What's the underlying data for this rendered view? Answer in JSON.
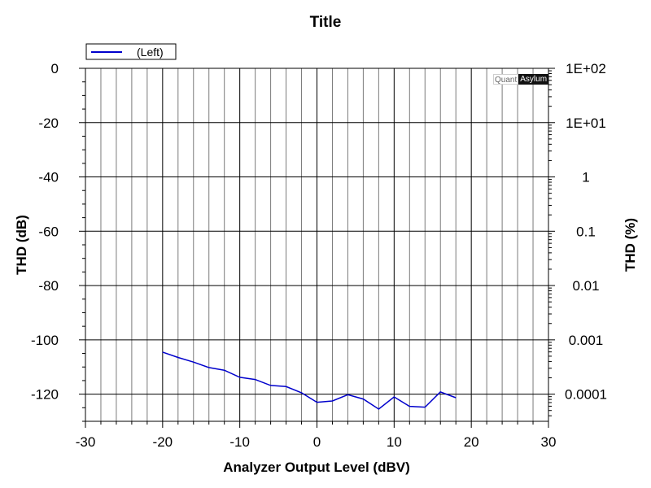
{
  "chart_data": {
    "type": "line",
    "title": "Title",
    "xlabel": "Analyzer Output Level (dBV)",
    "ylabel": "THD (dB)",
    "ylabel_right": "THD (%)",
    "xlim": [
      -30,
      30
    ],
    "ylim": [
      -130,
      0
    ],
    "x_ticks": [
      -30,
      -20,
      -10,
      0,
      10,
      20,
      30
    ],
    "y_ticks": [
      0,
      -20,
      -40,
      -60,
      -80,
      -100,
      -120
    ],
    "y_tick_labels": [
      "0",
      "-20",
      "-40",
      "-60",
      "-80",
      "-100",
      "-120"
    ],
    "x_tick_labels": [
      "-30",
      "-20",
      "-10",
      "0",
      "10",
      "20",
      "30"
    ],
    "right_ticks": [
      {
        "db": 0,
        "label": "1E+02"
      },
      {
        "db": -20,
        "label": "1E+01"
      },
      {
        "db": -40,
        "label": "1"
      },
      {
        "db": -60,
        "label": "0.1"
      },
      {
        "db": -80,
        "label": "0.01"
      },
      {
        "db": -100,
        "label": "0.001"
      },
      {
        "db": -120,
        "label": "0.0001"
      }
    ],
    "grid": true,
    "legend_position": "top-left",
    "series": [
      {
        "name": "(Left)",
        "color": "#0000cc",
        "x": [
          -20,
          -18,
          -16,
          -14,
          -12,
          -10,
          -8,
          -6,
          -4,
          -2,
          0,
          2,
          4,
          6,
          8,
          10,
          12,
          14,
          16,
          18
        ],
        "y": [
          -104.5,
          -106.5,
          -108.2,
          -110.2,
          -111.2,
          -113.8,
          -114.6,
          -116.8,
          -117.2,
          -119.5,
          -123.0,
          -122.5,
          -120.2,
          -121.8,
          -125.5,
          -121.0,
          -124.5,
          -124.8,
          -119.2,
          -121.3
        ]
      }
    ]
  },
  "brand": {
    "left": "Quant",
    "right": "Asylum"
  }
}
